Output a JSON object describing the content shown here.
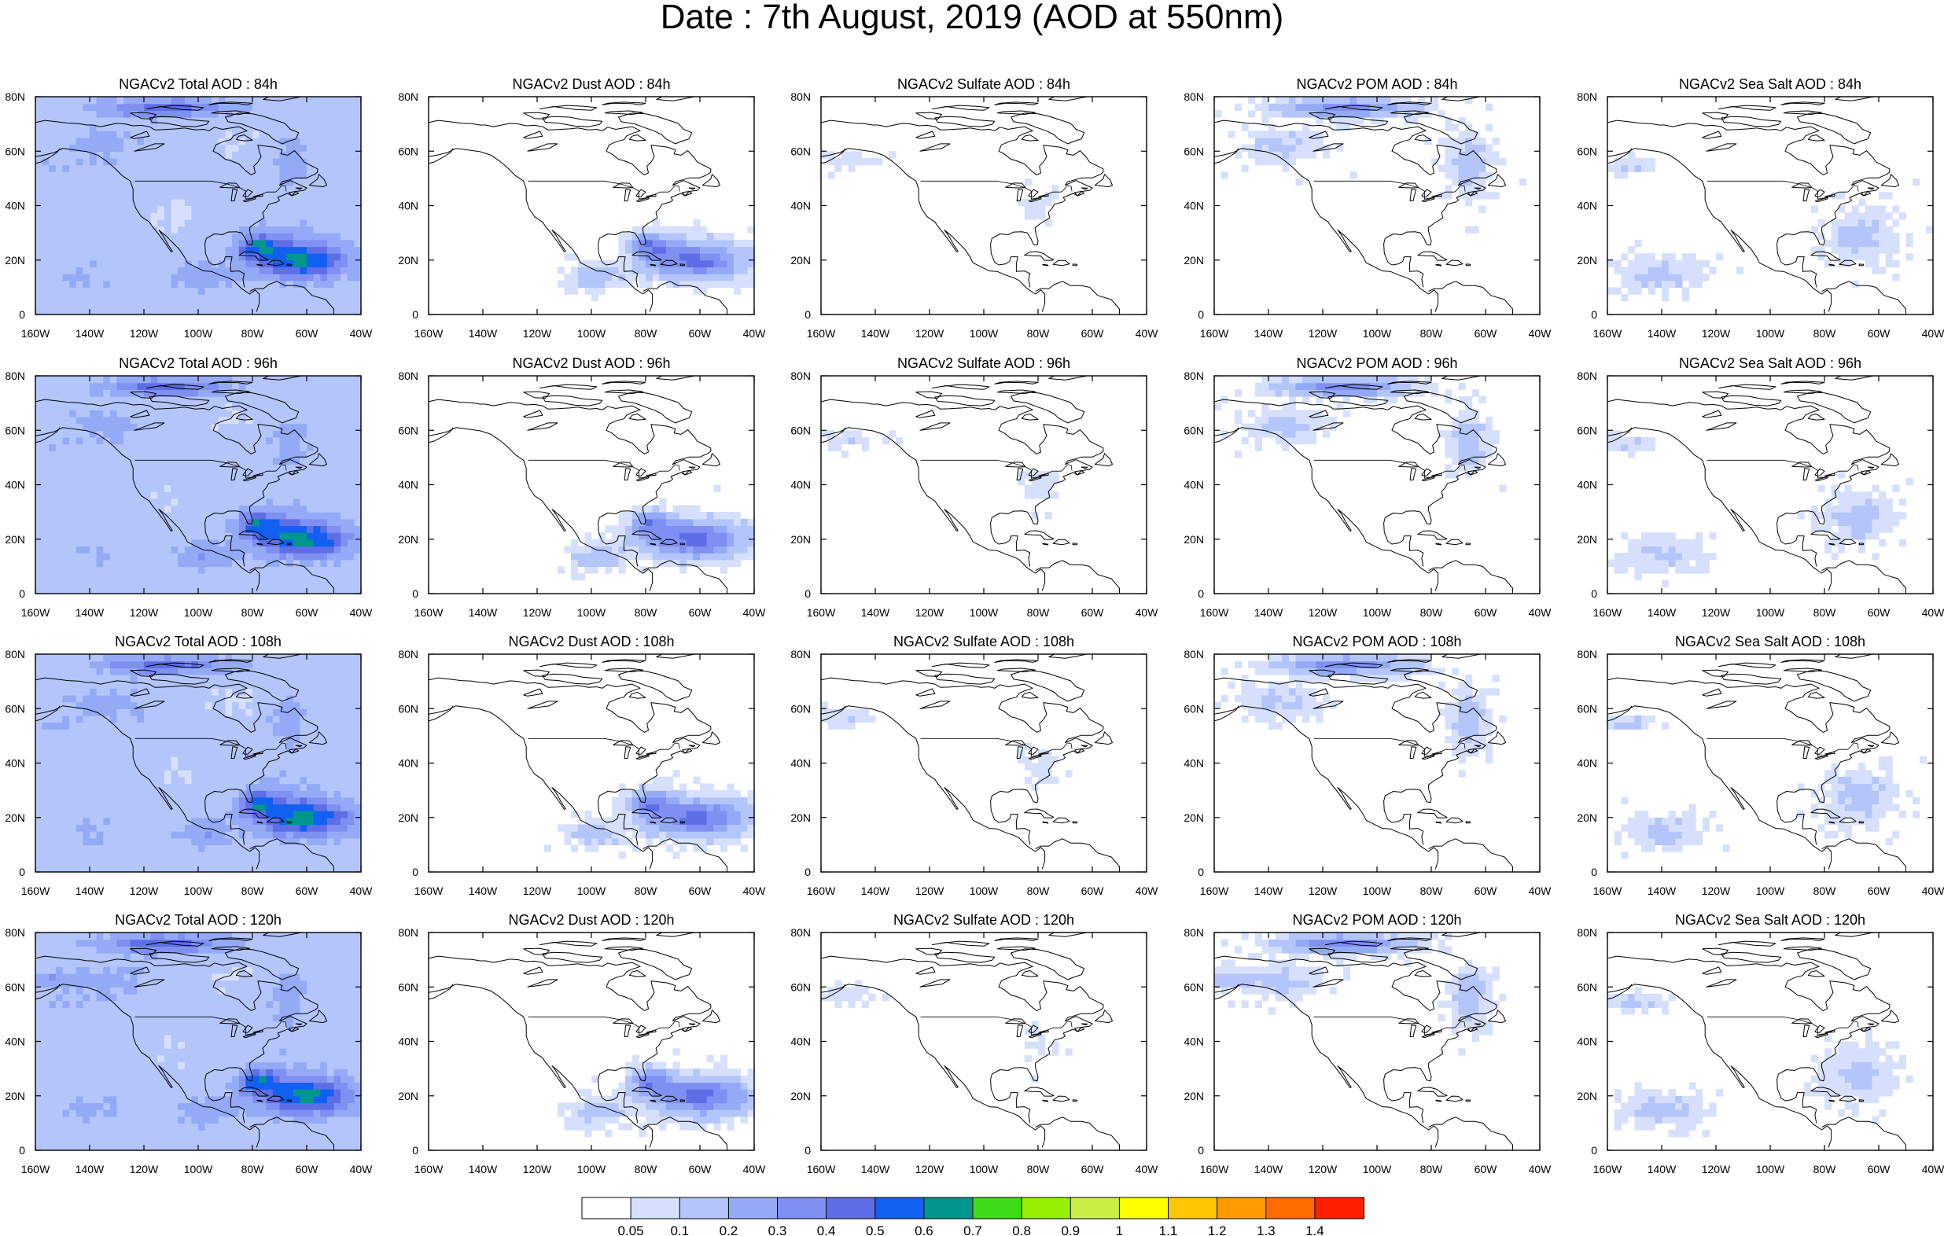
{
  "title": "Date : 7th August, 2019 (AOD at 550nm)",
  "axes": {
    "x_ticks": [
      "160W",
      "140W",
      "120W",
      "100W",
      "80W",
      "60W",
      "40W"
    ],
    "y_ticks": [
      "80N",
      "60N",
      "40N",
      "20N",
      "0"
    ]
  },
  "panels": [
    [
      {
        "title": "NGACv2 Total AOD : 84h",
        "species": "total",
        "hour": 84
      },
      {
        "title": "NGACv2 Dust AOD : 84h",
        "species": "dust",
        "hour": 84
      },
      {
        "title": "NGACv2 Sulfate AOD : 84h",
        "species": "sulfate",
        "hour": 84
      },
      {
        "title": "NGACv2 POM AOD : 84h",
        "species": "pom",
        "hour": 84
      },
      {
        "title": "NGACv2 Sea Salt AOD : 84h",
        "species": "seasalt",
        "hour": 84
      }
    ],
    [
      {
        "title": "NGACv2 Total AOD : 96h",
        "species": "total",
        "hour": 96
      },
      {
        "title": "NGACv2 Dust AOD : 96h",
        "species": "dust",
        "hour": 96
      },
      {
        "title": "NGACv2 Sulfate AOD : 96h",
        "species": "sulfate",
        "hour": 96
      },
      {
        "title": "NGACv2 POM AOD : 96h",
        "species": "pom",
        "hour": 96
      },
      {
        "title": "NGACv2 Sea Salt AOD : 96h",
        "species": "seasalt",
        "hour": 96
      }
    ],
    [
      {
        "title": "NGACv2 Total AOD : 108h",
        "species": "total",
        "hour": 108
      },
      {
        "title": "NGACv2 Dust AOD : 108h",
        "species": "dust",
        "hour": 108
      },
      {
        "title": "NGACv2 Sulfate AOD : 108h",
        "species": "sulfate",
        "hour": 108
      },
      {
        "title": "NGACv2 POM AOD : 108h",
        "species": "pom",
        "hour": 108
      },
      {
        "title": "NGACv2 Sea Salt AOD : 108h",
        "species": "seasalt",
        "hour": 108
      }
    ],
    [
      {
        "title": "NGACv2 Total AOD : 120h",
        "species": "total",
        "hour": 120
      },
      {
        "title": "NGACv2 Dust AOD : 120h",
        "species": "dust",
        "hour": 120
      },
      {
        "title": "NGACv2 Sulfate AOD : 120h",
        "species": "sulfate",
        "hour": 120
      },
      {
        "title": "NGACv2 POM AOD : 120h",
        "species": "pom",
        "hour": 120
      },
      {
        "title": "NGACv2 Sea Salt  AOD : 120h",
        "species": "seasalt",
        "hour": 120
      }
    ]
  ],
  "colorbar": {
    "labels": [
      "0.05",
      "0.1",
      "0.2",
      "0.3",
      "0.4",
      "0.5",
      "0.6",
      "0.7",
      "0.8",
      "0.9",
      "1",
      "1.1",
      "1.2",
      "1.3",
      "1.4"
    ],
    "colors": [
      "#ffffff",
      "#d6e0fc",
      "#b3c5fa",
      "#94aaf7",
      "#7f8ff2",
      "#5e6ee6",
      "#1260f2",
      "#00968e",
      "#3ddc16",
      "#96f000",
      "#c8f044",
      "#ffff00",
      "#ffc800",
      "#ff9a00",
      "#ff6b00",
      "#ff2000"
    ]
  }
}
